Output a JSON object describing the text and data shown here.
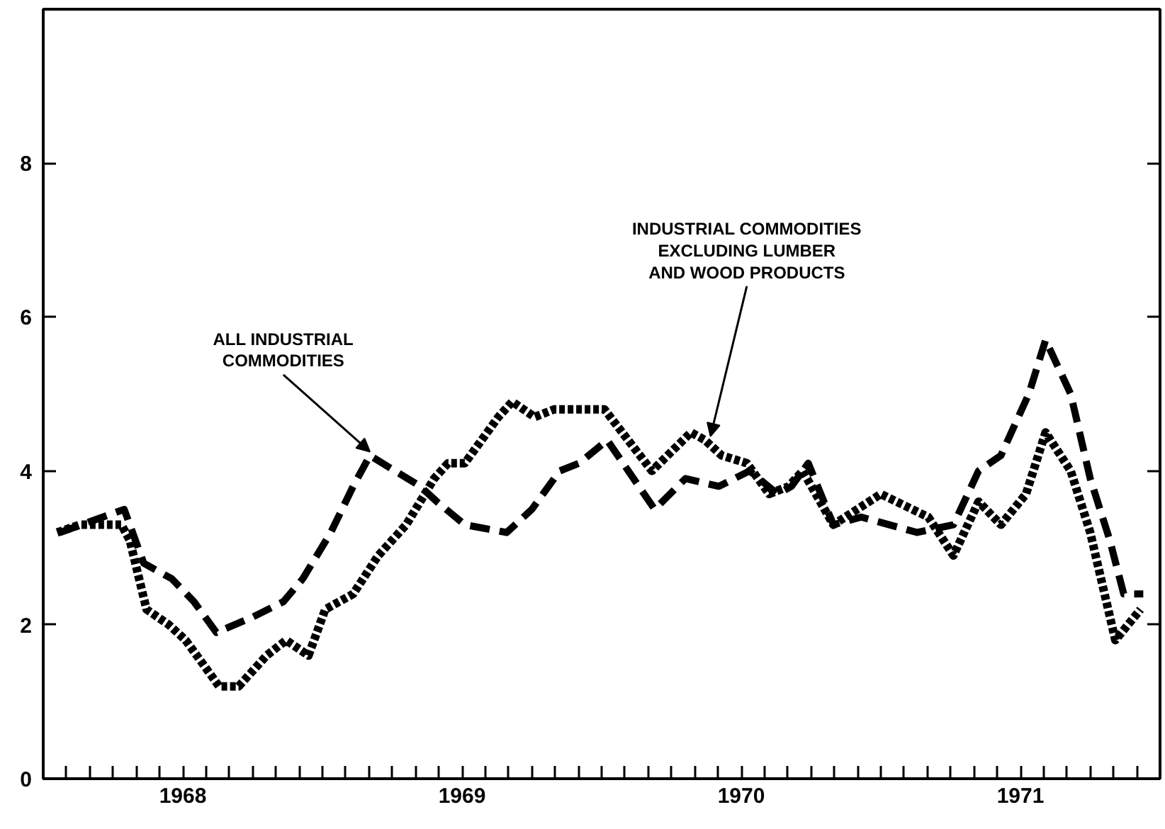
{
  "chart_data": {
    "type": "line",
    "xlim": [
      1968,
      1972
    ],
    "xticks": [
      {
        "value": 1968,
        "label": null
      },
      {
        "value": 1968.083,
        "label": null
      },
      {
        "value": 1968.167,
        "label": null
      },
      {
        "value": 1968.25,
        "label": null
      },
      {
        "value": 1968.333,
        "label": null
      },
      {
        "value": 1968.417,
        "label": null
      },
      {
        "value": 1968.5,
        "label": "1968"
      },
      {
        "value": 1968.583,
        "label": null
      },
      {
        "value": 1968.667,
        "label": null
      },
      {
        "value": 1968.75,
        "label": null
      },
      {
        "value": 1968.833,
        "label": null
      },
      {
        "value": 1968.917,
        "label": null
      },
      {
        "value": 1969,
        "label": null
      },
      {
        "value": 1969.083,
        "label": null
      },
      {
        "value": 1969.167,
        "label": null
      },
      {
        "value": 1969.25,
        "label": null
      },
      {
        "value": 1969.333,
        "label": null
      },
      {
        "value": 1969.417,
        "label": null
      },
      {
        "value": 1969.5,
        "label": "1969"
      },
      {
        "value": 1969.583,
        "label": null
      },
      {
        "value": 1969.667,
        "label": null
      },
      {
        "value": 1969.75,
        "label": null
      },
      {
        "value": 1969.833,
        "label": null
      },
      {
        "value": 1969.917,
        "label": null
      },
      {
        "value": 1970,
        "label": null
      },
      {
        "value": 1970.083,
        "label": null
      },
      {
        "value": 1970.167,
        "label": null
      },
      {
        "value": 1970.25,
        "label": null
      },
      {
        "value": 1970.333,
        "label": null
      },
      {
        "value": 1970.417,
        "label": null
      },
      {
        "value": 1970.5,
        "label": "1970"
      },
      {
        "value": 1970.583,
        "label": null
      },
      {
        "value": 1970.667,
        "label": null
      },
      {
        "value": 1970.75,
        "label": null
      },
      {
        "value": 1970.833,
        "label": null
      },
      {
        "value": 1970.917,
        "label": null
      },
      {
        "value": 1971,
        "label": null
      },
      {
        "value": 1971.083,
        "label": null
      },
      {
        "value": 1971.167,
        "label": null
      },
      {
        "value": 1971.25,
        "label": null
      },
      {
        "value": 1971.333,
        "label": null
      },
      {
        "value": 1971.417,
        "label": null
      },
      {
        "value": 1971.5,
        "label": "1971"
      },
      {
        "value": 1971.583,
        "label": null
      },
      {
        "value": 1971.667,
        "label": null
      },
      {
        "value": 1971.75,
        "label": null
      },
      {
        "value": 1971.833,
        "label": null
      },
      {
        "value": 1971.917,
        "label": null
      },
      {
        "value": 1972,
        "label": null
      }
    ],
    "ylim": [
      0,
      10
    ],
    "yticks": [
      0,
      2,
      4,
      6,
      8
    ],
    "marker": "none",
    "series": [
      {
        "color": "#000000",
        "line_style": "dashed",
        "x": [
          1968.06,
          1968.29,
          1968.36,
          1968.46,
          1968.54,
          1968.62,
          1968.75,
          1968.86,
          1968.93,
          1969.03,
          1969.11,
          1969.17,
          1969.26,
          1969.35,
          1969.41,
          1969.51,
          1969.66,
          1969.75,
          1969.85,
          1969.92,
          1970.02,
          1970.19,
          1970.3,
          1970.42,
          1970.53,
          1970.63,
          1970.68,
          1970.74,
          1970.83,
          1970.93,
          1971.03,
          1971.13,
          1971.26,
          1971.35,
          1971.43,
          1971.53,
          1971.59,
          1971.68,
          1971.75,
          1971.82,
          1971.87,
          1971.94
        ],
        "values": [
          3.2,
          3.5,
          2.8,
          2.6,
          2.3,
          1.9,
          2.1,
          2.3,
          2.6,
          3.2,
          3.8,
          4.2,
          4.0,
          3.8,
          3.6,
          3.3,
          3.2,
          3.5,
          4.0,
          4.1,
          4.4,
          3.5,
          3.9,
          3.8,
          4.0,
          3.7,
          3.8,
          4.1,
          3.3,
          3.4,
          3.3,
          3.2,
          3.3,
          4.0,
          4.2,
          5.0,
          5.7,
          5.0,
          3.9,
          3.1,
          2.4,
          2.4
        ]
      },
      {
        "color": "#000000",
        "line_style": "dotted",
        "x": [
          1968.05,
          1968.13,
          1968.28,
          1968.31,
          1968.37,
          1968.45,
          1968.51,
          1968.63,
          1968.7,
          1968.8,
          1968.87,
          1968.95,
          1969.01,
          1969.11,
          1969.2,
          1969.3,
          1969.4,
          1969.45,
          1969.51,
          1969.63,
          1969.68,
          1969.76,
          1969.83,
          1970.01,
          1970.18,
          1970.32,
          1970.37,
          1970.43,
          1970.52,
          1970.6,
          1970.67,
          1970.72,
          1970.83,
          1971.0,
          1971.17,
          1971.26,
          1971.35,
          1971.43,
          1971.52,
          1971.59,
          1971.68,
          1971.75,
          1971.84,
          1971.93
        ],
        "values": [
          3.2,
          3.3,
          3.3,
          3.1,
          2.2,
          2.0,
          1.8,
          1.2,
          1.2,
          1.6,
          1.8,
          1.6,
          2.2,
          2.4,
          2.9,
          3.3,
          3.9,
          4.1,
          4.1,
          4.7,
          4.9,
          4.7,
          4.8,
          4.8,
          4.0,
          4.5,
          4.4,
          4.2,
          4.1,
          3.7,
          3.8,
          4.0,
          3.3,
          3.7,
          3.4,
          2.9,
          3.6,
          3.3,
          3.7,
          4.5,
          4.0,
          3.2,
          1.8,
          2.2
        ]
      }
    ],
    "annotations": [
      {
        "text": "ALL INDUSTRIAL\nCOMMODITIES",
        "x": 1969.17,
        "y": 4.2
      },
      {
        "text": "INDUSTRIAL COMMODITIES\nEXCLUDING LUMBER\nAND WOOD PRODUCTS",
        "x": 1970.39,
        "y": 4.4
      }
    ]
  }
}
